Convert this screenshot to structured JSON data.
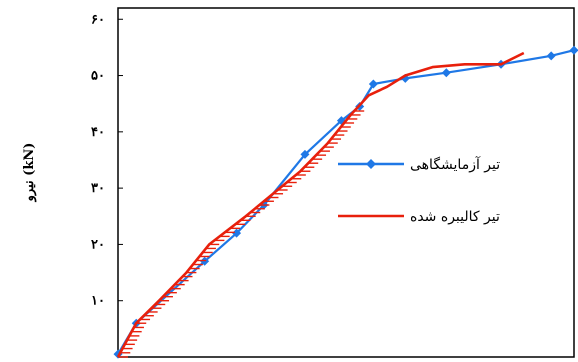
{
  "chart_data": {
    "type": "line",
    "ylabel": "نیرو (kN)",
    "ylim": [
      0,
      62
    ],
    "xlim": [
      0,
      1
    ],
    "y_ticks": [
      {
        "value": 10,
        "label": "۱۰"
      },
      {
        "value": 20,
        "label": "۲۰"
      },
      {
        "value": 30,
        "label": "۳۰"
      },
      {
        "value": 40,
        "label": "۴۰"
      },
      {
        "value": 50,
        "label": "۵۰"
      },
      {
        "value": 60,
        "label": "۶۰"
      }
    ],
    "grid": false,
    "legend_position": "right-middle",
    "series": [
      {
        "name": "تیر آزمایشگاهی",
        "color": "#1f78e6",
        "marker": "diamond",
        "x": [
          0.0,
          0.04,
          0.19,
          0.26,
          0.32,
          0.41,
          0.49,
          0.53,
          0.56,
          0.63,
          0.72,
          0.84,
          0.95,
          1.0
        ],
        "y": [
          0.5,
          6.0,
          17.0,
          22.0,
          27.0,
          36.0,
          42.0,
          44.5,
          48.5,
          49.5,
          50.5,
          52.0,
          53.5,
          54.5
        ]
      },
      {
        "name": "تیر کالیبره شده",
        "color": "#e8200c",
        "marker": "none",
        "x": [
          0.0,
          0.04,
          0.09,
          0.15,
          0.2,
          0.28,
          0.34,
          0.4,
          0.46,
          0.51,
          0.55,
          0.59,
          0.63,
          0.69,
          0.76,
          0.84,
          0.89
        ],
        "y": [
          0.0,
          6.0,
          10.0,
          15.0,
          20.0,
          25.0,
          29.0,
          33.0,
          38.0,
          43.0,
          46.5,
          48.0,
          50.0,
          51.5,
          52.0,
          52.0,
          54.0
        ]
      }
    ]
  }
}
